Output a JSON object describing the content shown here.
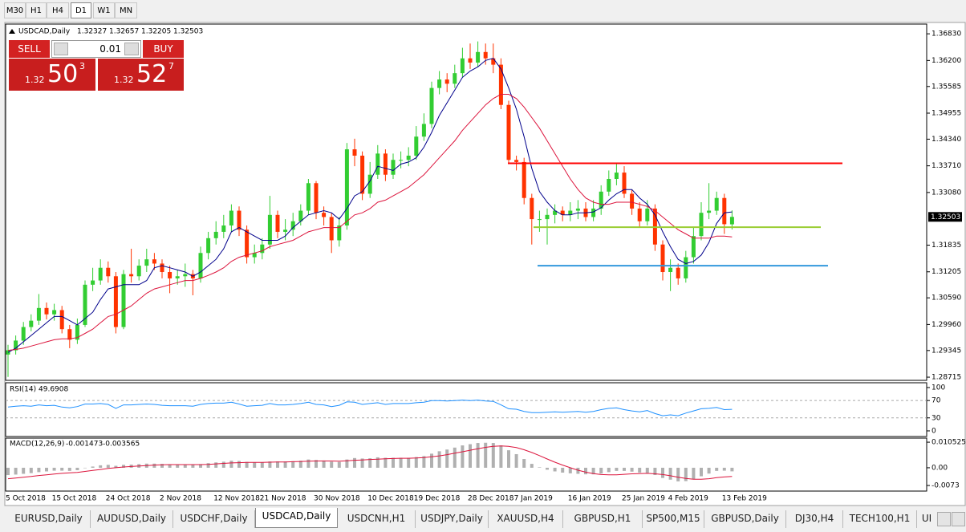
{
  "toolbar": [
    "M30",
    "H1",
    "H4",
    "D1",
    "W1",
    "MN"
  ],
  "trade_panel": {
    "sell": "SELL",
    "lot": "0.01",
    "buy": "BUY",
    "sell_price": {
      "big": "1.32",
      "main": "50",
      "pip": "3"
    },
    "buy_price": {
      "big": "1.32",
      "main": "52",
      "pip": "7"
    }
  },
  "tabs": [
    "EURUSD,Daily",
    "AUDUSD,Daily",
    "USDCHF,Daily",
    "USDCAD,Daily",
    "USDCNH,H1",
    "USDJPY,Daily",
    "XAUUSD,H4",
    "GBPUSD,H1",
    "SP500,M15",
    "GBPUSD,Daily",
    "DJ30,H4",
    "TECH100,H1",
    "UI"
  ],
  "active_tab": "USDCAD,Daily",
  "chart_data": [
    {
      "type": "candlestick",
      "title": "USDCAD,Daily",
      "x": [
        "5 Oct 2018",
        null,
        null,
        null,
        null,
        null,
        "15 Oct 2018",
        null,
        null,
        null,
        null,
        null,
        null,
        "24 Oct 2018",
        null,
        null,
        null,
        null,
        null,
        null,
        "2 Nov 2018",
        null,
        null,
        null,
        null,
        null,
        null,
        "12 Nov 2018",
        null,
        null,
        null,
        null,
        null,
        "21 Nov 2018",
        null,
        null,
        null,
        null,
        null,
        null,
        "30 Nov 2018",
        null,
        null,
        null,
        null,
        null,
        null,
        "10 Dec 2018",
        null,
        null,
        null,
        null,
        null,
        "19 Dec 2018",
        null,
        null,
        null,
        null,
        null,
        null,
        "28 Dec 2018",
        null,
        null,
        null,
        null,
        null,
        "7 Jan 2019",
        null,
        null,
        null,
        null,
        null,
        null,
        "16 Jan 2019",
        null,
        null,
        null,
        null,
        null,
        null,
        "25 Jan 2019",
        null,
        null,
        null,
        null,
        null,
        "4 Feb 2019",
        null,
        null,
        null,
        null,
        null,
        null,
        "13 Feb 2019",
        null
      ],
      "open": [
        1.2925,
        1.2935,
        1.2958,
        1.299,
        1.3005,
        1.3035,
        1.302,
        1.303,
        1.2985,
        1.296,
        1.2995,
        1.309,
        1.31,
        1.313,
        1.311,
        1.299,
        1.3115,
        1.311,
        1.3135,
        1.315,
        1.314,
        1.312,
        1.3105,
        1.311,
        1.3115,
        1.3105,
        1.3165,
        1.32,
        1.3215,
        1.323,
        1.3265,
        1.322,
        1.3155,
        1.3165,
        1.3185,
        1.3255,
        1.3215,
        1.322,
        1.324,
        1.3265,
        1.333,
        1.326,
        1.325,
        1.3195,
        1.323,
        1.341,
        1.3395,
        1.3305,
        1.335,
        1.34,
        1.335,
        1.3385,
        1.3385,
        1.3395,
        1.344,
        1.347,
        1.3555,
        1.3575,
        1.3565,
        1.359,
        1.3625,
        1.3615,
        1.364,
        1.3625,
        1.361,
        1.3515,
        1.3385,
        1.338,
        1.3295,
        1.3245,
        1.3245,
        1.3255,
        1.3265,
        1.3255,
        1.3265,
        1.327,
        1.325,
        1.327,
        1.331,
        1.334,
        1.3355,
        1.3305,
        1.327,
        1.324,
        1.327,
        1.3185,
        1.312,
        1.313,
        1.3105,
        1.3155,
        1.3205,
        1.326,
        1.3265,
        1.3295,
        1.32327
      ],
      "high": [
        1.2948,
        1.297,
        1.3002,
        1.302,
        1.3068,
        1.3048,
        1.3045,
        1.304,
        1.2995,
        1.301,
        1.31,
        1.313,
        1.315,
        1.3145,
        1.312,
        1.3125,
        1.3175,
        1.315,
        1.3175,
        1.3165,
        1.315,
        1.3135,
        1.3125,
        1.314,
        1.3125,
        1.318,
        1.3215,
        1.324,
        1.3255,
        1.328,
        1.3275,
        1.323,
        1.3185,
        1.32,
        1.33,
        1.3265,
        1.3245,
        1.326,
        1.328,
        1.334,
        1.3335,
        1.3275,
        1.326,
        1.325,
        1.3425,
        1.3435,
        1.3405,
        1.338,
        1.342,
        1.341,
        1.34,
        1.3405,
        1.3415,
        1.3465,
        1.3495,
        1.357,
        1.3595,
        1.359,
        1.361,
        1.365,
        1.366,
        1.3665,
        1.366,
        1.366,
        1.3625,
        1.3525,
        1.3395,
        1.339,
        1.3305,
        1.3265,
        1.327,
        1.328,
        1.3275,
        1.3285,
        1.329,
        1.3285,
        1.329,
        1.3325,
        1.336,
        1.3375,
        1.337,
        1.3315,
        1.3285,
        1.329,
        1.328,
        1.3195,
        1.315,
        1.314,
        1.317,
        1.3225,
        1.3285,
        1.333,
        1.331,
        1.3305,
        1.32657
      ],
      "low": [
        1.2872,
        1.2925,
        1.2948,
        1.298,
        1.2995,
        1.3008,
        1.3005,
        1.2975,
        1.294,
        1.295,
        1.299,
        1.3075,
        1.309,
        1.3095,
        1.2975,
        1.2985,
        1.3095,
        1.31,
        1.312,
        1.3125,
        1.3105,
        1.307,
        1.309,
        1.3085,
        1.3065,
        1.3095,
        1.315,
        1.3185,
        1.32,
        1.3215,
        1.3205,
        1.314,
        1.314,
        1.315,
        1.3175,
        1.32,
        1.3195,
        1.3205,
        1.323,
        1.3255,
        1.3245,
        1.323,
        1.3165,
        1.318,
        1.322,
        1.337,
        1.329,
        1.3295,
        1.334,
        1.3335,
        1.334,
        1.3365,
        1.337,
        1.3385,
        1.343,
        1.346,
        1.354,
        1.3545,
        1.3555,
        1.358,
        1.36,
        1.3605,
        1.361,
        1.359,
        1.3505,
        1.3375,
        1.336,
        1.328,
        1.3185,
        1.3215,
        1.3185,
        1.3235,
        1.324,
        1.324,
        1.3245,
        1.324,
        1.324,
        1.3255,
        1.33,
        1.3325,
        1.3295,
        1.3255,
        1.3225,
        1.323,
        1.317,
        1.31,
        1.3075,
        1.309,
        1.3095,
        1.314,
        1.3195,
        1.3245,
        1.3255,
        1.321,
        1.32205
      ],
      "close": [
        1.2935,
        1.2958,
        1.299,
        1.3005,
        1.3035,
        1.302,
        1.303,
        1.2985,
        1.296,
        1.2995,
        1.309,
        1.31,
        1.313,
        1.311,
        1.299,
        1.3115,
        1.311,
        1.3135,
        1.315,
        1.314,
        1.312,
        1.3105,
        1.311,
        1.3115,
        1.3105,
        1.3165,
        1.32,
        1.3215,
        1.323,
        1.3265,
        1.322,
        1.3155,
        1.3165,
        1.3185,
        1.3255,
        1.3215,
        1.322,
        1.324,
        1.3265,
        1.333,
        1.326,
        1.325,
        1.3195,
        1.323,
        1.341,
        1.3395,
        1.3305,
        1.335,
        1.34,
        1.335,
        1.3385,
        1.3385,
        1.3395,
        1.344,
        1.347,
        1.3555,
        1.3575,
        1.3565,
        1.359,
        1.3625,
        1.3615,
        1.364,
        1.3625,
        1.361,
        1.3515,
        1.3385,
        1.338,
        1.3295,
        1.3245,
        1.3245,
        1.3255,
        1.3265,
        1.3255,
        1.3265,
        1.327,
        1.325,
        1.327,
        1.331,
        1.334,
        1.3355,
        1.3305,
        1.327,
        1.324,
        1.327,
        1.3185,
        1.312,
        1.313,
        1.3105,
        1.3155,
        1.3205,
        1.326,
        1.3265,
        1.3295,
        1.3233,
        1.32503
      ],
      "up_color": "#32cd32",
      "down_color": "#ff3300",
      "lines": [
        {
          "color": "#00008b",
          "values": [
            1.293,
            1.294,
            1.2955,
            1.297,
            1.2985,
            1.3,
            1.3015,
            1.3015,
            1.3005,
            1.2995,
            1.301,
            1.3025,
            1.3055,
            1.308,
            1.3085,
            1.309,
            1.309,
            1.309,
            1.31,
            1.313,
            1.3135,
            1.313,
            1.3125,
            1.312,
            1.311,
            1.312,
            1.3135,
            1.315,
            1.3175,
            1.3215,
            1.3225,
            1.3215,
            1.3205,
            1.3195,
            1.3195,
            1.3195,
            1.3205,
            1.3225,
            1.324,
            1.3255,
            1.326,
            1.3265,
            1.326,
            1.3245,
            1.327,
            1.33,
            1.331,
            1.3335,
            1.337,
            1.3365,
            1.336,
            1.3375,
            1.338,
            1.339,
            1.3415,
            1.345,
            1.349,
            1.352,
            1.355,
            1.358,
            1.3595,
            1.3605,
            1.362,
            1.3625,
            1.36,
            1.3555,
            1.3505,
            1.344,
            1.3365,
            1.331,
            1.3285,
            1.3265,
            1.3255,
            1.3255,
            1.326,
            1.326,
            1.3262,
            1.3272,
            1.329,
            1.3305,
            1.3315,
            1.3315,
            1.3295,
            1.328,
            1.3255,
            1.3215,
            1.318,
            1.315,
            1.314,
            1.3145,
            1.316,
            1.319,
            1.3235,
            1.326,
            1.3262
          ]
        },
        {
          "color": "#dc143c",
          "values": [
            1.2935,
            1.2937,
            1.294,
            1.2945,
            1.295,
            1.2955,
            1.296,
            1.2962,
            1.2962,
            1.2965,
            1.2975,
            1.2985,
            1.3,
            1.3015,
            1.302,
            1.303,
            1.304,
            1.3055,
            1.307,
            1.308,
            1.3085,
            1.309,
            1.3095,
            1.31,
            1.31,
            1.3105,
            1.3112,
            1.312,
            1.313,
            1.3145,
            1.3155,
            1.316,
            1.3165,
            1.317,
            1.318,
            1.3185,
            1.319,
            1.3195,
            1.3205,
            1.3215,
            1.322,
            1.3225,
            1.3225,
            1.3225,
            1.324,
            1.3255,
            1.326,
            1.327,
            1.3285,
            1.329,
            1.33,
            1.331,
            1.332,
            1.3335,
            1.335,
            1.337,
            1.339,
            1.341,
            1.343,
            1.3455,
            1.3475,
            1.3495,
            1.3515,
            1.353,
            1.354,
            1.354,
            1.353,
            1.351,
            1.3485,
            1.346,
            1.343,
            1.34,
            1.337,
            1.334,
            1.3315,
            1.3295,
            1.3285,
            1.328,
            1.328,
            1.3285,
            1.3285,
            1.3285,
            1.328,
            1.3275,
            1.3265,
            1.325,
            1.3235,
            1.322,
            1.321,
            1.32,
            1.32,
            1.32,
            1.3205,
            1.3205,
            1.3203
          ]
        }
      ],
      "levels": [
        {
          "value": 1.3377,
          "color": "#ff0000"
        },
        {
          "value": 1.3226,
          "color": "#9acd32"
        },
        {
          "value": 1.3135,
          "color": "#3399dd"
        }
      ],
      "ylim": [
        1.2864,
        1.3706
      ],
      "yticks": [
        {
          "value": 1.3683,
          "label": "1.36830"
        },
        {
          "value": 1.362,
          "label": "1.36200"
        },
        1.35585,
        1.34955,
        {
          "value": 1.3434,
          "label": "1.34340"
        },
        {
          "value": 1.3371,
          "label": "1.33710"
        },
        {
          "value": 1.3308,
          "label": "1.33080"
        },
        1.31835,
        1.31205,
        {
          "value": 1.3059,
          "label": "1.30590"
        },
        {
          "value": 1.2996,
          "label": "1.29960"
        },
        1.29345,
        1.28715
      ]
    },
    {
      "type": "line",
      "title": "RSI(14)",
      "color": "#1e90ff",
      "values": [
        55,
        57,
        58,
        57,
        60,
        58,
        59,
        55,
        53,
        56,
        62,
        62,
        63,
        61,
        52,
        60,
        60,
        61,
        62,
        61,
        59,
        58,
        58,
        58,
        57,
        61,
        63,
        64,
        64,
        66,
        62,
        57,
        58,
        59,
        63,
        60,
        60,
        61,
        63,
        66,
        61,
        60,
        56,
        59,
        67,
        66,
        61,
        63,
        65,
        61,
        63,
        63,
        63,
        65,
        66,
        70,
        70,
        69,
        70,
        71,
        70,
        71,
        69,
        68,
        60,
        51,
        50,
        45,
        42,
        42,
        43,
        44,
        43,
        44,
        45,
        43,
        45,
        49,
        52,
        53,
        49,
        46,
        44,
        47,
        40,
        35,
        37,
        35,
        41,
        46,
        51,
        52,
        54,
        49,
        49.6908
      ],
      "levels": [
        {
          "value": 70,
          "color": "#a9a9a9"
        },
        {
          "value": 30,
          "color": "#a9a9a9"
        }
      ],
      "ylim": [
        -13,
        111
      ],
      "yticks": [
        100,
        70,
        30,
        0
      ]
    },
    {
      "type": "bar",
      "title": "MACD(12,26,9)",
      "color": "#b0b0b0",
      "values": [
        -0.003,
        -0.0028,
        -0.0025,
        -0.0022,
        -0.0018,
        -0.0015,
        -0.0012,
        -0.0012,
        -0.0013,
        -0.001,
        0.0,
        0.0005,
        0.001,
        0.0012,
        0.0008,
        0.0012,
        0.0013,
        0.0015,
        0.0017,
        0.0017,
        0.0016,
        0.0014,
        0.0013,
        0.0013,
        0.0012,
        0.0015,
        0.0019,
        0.0022,
        0.0025,
        0.0029,
        0.0028,
        0.0024,
        0.0022,
        0.0022,
        0.0026,
        0.0026,
        0.0026,
        0.0027,
        0.0029,
        0.0034,
        0.0032,
        0.003,
        0.0025,
        0.0024,
        0.0034,
        0.004,
        0.0038,
        0.0039,
        0.0043,
        0.0041,
        0.0041,
        0.0041,
        0.0041,
        0.0044,
        0.0048,
        0.0058,
        0.0068,
        0.0075,
        0.0083,
        0.0092,
        0.0097,
        0.0102,
        0.0103,
        0.0102,
        0.0092,
        0.0072,
        0.0056,
        0.0036,
        0.0016,
        0.0002,
        -0.0008,
        -0.0015,
        -0.002,
        -0.0023,
        -0.0025,
        -0.0027,
        -0.0027,
        -0.0024,
        -0.0018,
        -0.0013,
        -0.0013,
        -0.0016,
        -0.002,
        -0.0021,
        -0.003,
        -0.0042,
        -0.0049,
        -0.0056,
        -0.0055,
        -0.0047,
        -0.0035,
        -0.0024,
        -0.0013,
        -0.0012,
        -0.001473
      ],
      "lines": [
        {
          "color": "#dc143c",
          "values": [
            -0.0045,
            -0.0042,
            -0.0039,
            -0.0036,
            -0.0032,
            -0.0029,
            -0.0026,
            -0.0023,
            -0.0021,
            -0.0019,
            -0.0015,
            -0.0011,
            -0.0007,
            -0.0003,
            0.0,
            0.0003,
            0.0005,
            0.0007,
            0.0009,
            0.0011,
            0.0012,
            0.0013,
            0.0013,
            0.0013,
            0.0013,
            0.0013,
            0.0014,
            0.0016,
            0.0018,
            0.002,
            0.0021,
            0.0022,
            0.0022,
            0.0022,
            0.0023,
            0.0024,
            0.0024,
            0.0025,
            0.0026,
            0.0027,
            0.0028,
            0.0028,
            0.0028,
            0.0027,
            0.0029,
            0.0031,
            0.0032,
            0.0034,
            0.0035,
            0.0037,
            0.0038,
            0.0039,
            0.0039,
            0.004,
            0.0042,
            0.0045,
            0.0049,
            0.0054,
            0.006,
            0.0066,
            0.0072,
            0.0078,
            0.0084,
            0.0088,
            0.009,
            0.0088,
            0.0083,
            0.0074,
            0.0063,
            0.005,
            0.0036,
            0.0023,
            0.0011,
            0.0,
            -0.001,
            -0.0018,
            -0.0024,
            -0.0028,
            -0.0029,
            -0.0029,
            -0.0027,
            -0.0025,
            -0.0024,
            -0.0023,
            -0.0025,
            -0.0028,
            -0.0033,
            -0.0039,
            -0.0044,
            -0.0047,
            -0.0047,
            -0.0045,
            -0.0041,
            -0.0038,
            -0.003565
          ]
        }
      ],
      "ylim": [
        -0.0096,
        0.0122
      ],
      "yticks": [
        0.010525,
        {
          "value": 0,
          "label": "0.00"
        },
        -0.0073
      ]
    }
  ]
}
